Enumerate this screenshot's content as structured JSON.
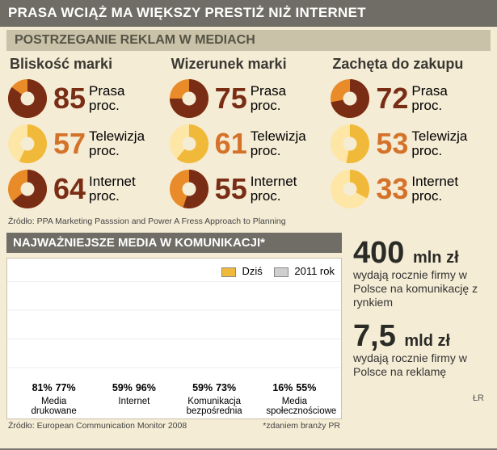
{
  "colors": {
    "bg": "#f5ecd5",
    "hdr_bg": "#6f6d65",
    "subhdr_bg": "#c9c2a8",
    "pie_prasa_fill": "#7a2d15",
    "pie_prasa_rest": "#e88b28",
    "pie_tv_fill": "#f0b93a",
    "pie_tv_rest": "#fde6a6",
    "val_prasa": "#7a2d15",
    "val_other": "#d4722a",
    "bar_today": "#f0b93a",
    "bar_2011": "#cfcfcf"
  },
  "title": "PRASA WCIĄŻ MA WIĘKSZY PRESTIŻ NIŻ INTERNET",
  "section1": {
    "header": "POSTRZEGANIE REKLAM W MEDIACH",
    "source": "Źródło: PPA Marketing Passsion and Power A Fress Approach to Planning",
    "unit_lines": [
      "proc."
    ],
    "columns": [
      {
        "title": "Bliskość marki",
        "rows": [
          {
            "label": "Prasa",
            "value": 85,
            "kind": "prasa"
          },
          {
            "label": "Telewizja",
            "value": 57,
            "kind": "tv"
          },
          {
            "label": "Internet",
            "value": 64,
            "kind": "prasa"
          }
        ]
      },
      {
        "title": "Wizerunek marki",
        "rows": [
          {
            "label": "Prasa",
            "value": 75,
            "kind": "prasa"
          },
          {
            "label": "Telewizja",
            "value": 61,
            "kind": "tv"
          },
          {
            "label": "Internet",
            "value": 55,
            "kind": "prasa"
          }
        ]
      },
      {
        "title": "Zachęta do zakupu",
        "rows": [
          {
            "label": "Prasa",
            "value": 72,
            "kind": "prasa"
          },
          {
            "label": "Telewizja",
            "value": 53,
            "kind": "tv"
          },
          {
            "label": "Internet",
            "value": 33,
            "kind": "tv"
          }
        ]
      }
    ]
  },
  "section2": {
    "header": "NAJWAŻNIEJSZE MEDIA W KOMUNIKACJI*",
    "legend": {
      "today": "Dziś",
      "y2011": "2011 rok"
    },
    "ymax": 100,
    "groups": [
      {
        "label": "Media drukowane",
        "today": 81,
        "y2011": 77
      },
      {
        "label": "Internet",
        "today": 59,
        "y2011": 96
      },
      {
        "label": "Komunikacja bezpośrednia",
        "today": 59,
        "y2011": 73
      },
      {
        "label": "Media społecznościowe",
        "today": 16,
        "y2011": 55
      }
    ],
    "source_left": "Źródło: European Communication Monitor 2008",
    "source_right": "*zdaniem branży PR"
  },
  "right_facts": [
    {
      "big": "400",
      "unit": "mln zł",
      "desc": "wydają rocznie firmy w Polsce na komunikację z rynkiem"
    },
    {
      "big": "7,5",
      "unit": "mld zł",
      "desc": "wydają rocznie firmy w Polsce na reklamę"
    }
  ],
  "signature": "ŁR"
}
